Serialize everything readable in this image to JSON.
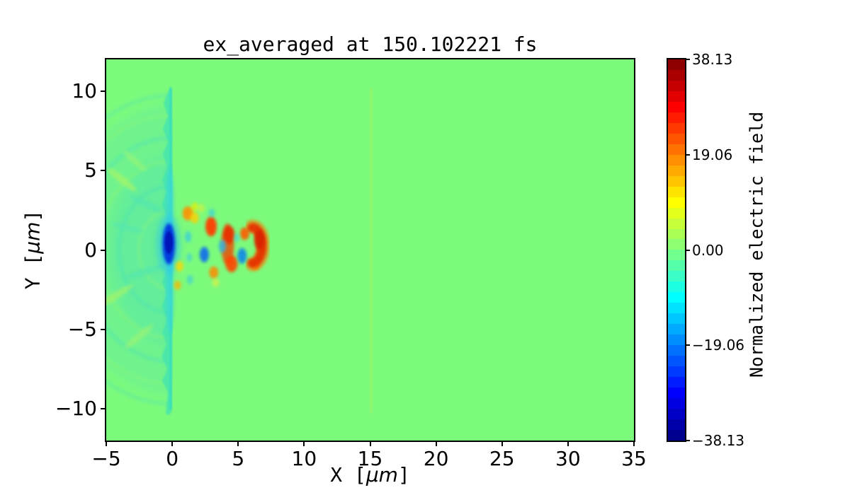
{
  "chart_data": {
    "type": "heatmap",
    "title": "ex_averaged at 150.102221 fs",
    "xlabel": {
      "prefix": "X [",
      "unit": "μm",
      "suffix": "]"
    },
    "ylabel": {
      "prefix": "Y [",
      "unit": "μm",
      "suffix": "]"
    },
    "xlim": [
      -5,
      35
    ],
    "ylim": [
      -12,
      12
    ],
    "x_ticks": [
      {
        "value": -5,
        "label": "−5"
      },
      {
        "value": 0,
        "label": "0"
      },
      {
        "value": 5,
        "label": "5"
      },
      {
        "value": 10,
        "label": "10"
      },
      {
        "value": 15,
        "label": "15"
      },
      {
        "value": 20,
        "label": "20"
      },
      {
        "value": 25,
        "label": "25"
      },
      {
        "value": 30,
        "label": "30"
      },
      {
        "value": 35,
        "label": "35"
      }
    ],
    "y_ticks": [
      {
        "value": 10,
        "label": "10"
      },
      {
        "value": 5,
        "label": "5"
      },
      {
        "value": 0,
        "label": "0"
      },
      {
        "value": -5,
        "label": "−5"
      },
      {
        "value": -10,
        "label": "−10"
      }
    ],
    "colormap": "jet",
    "clim": [
      -38.13,
      38.13
    ],
    "grid": false,
    "colorbar": {
      "label": "Normalized electric field",
      "position": "right",
      "bands": 36,
      "ticks": [
        {
          "value": 38.13,
          "label": "38.13"
        },
        {
          "value": 19.06,
          "label": "19.06"
        },
        {
          "value": 0.0,
          "label": "0.00"
        },
        {
          "value": -19.06,
          "label": "−19.06"
        },
        {
          "value": -38.13,
          "label": "−38.13"
        }
      ]
    },
    "features": [
      {
        "name": "uniform-background",
        "value": 0.0,
        "extent": "everywhere outside plasma and pulse"
      },
      {
        "name": "plasma-region",
        "x_range": [
          -5,
          0
        ],
        "y_range": [
          -10.6,
          10.3
        ],
        "value_range": [
          -4,
          2
        ],
        "description": "slightly negative (teal) region with jagged right edge at x≈0 and faint circular ripples centered near the origin"
      },
      {
        "name": "laser-pulse",
        "x_range": [
          -0.5,
          7.5
        ],
        "y_range": [
          -3.5,
          3.5
        ],
        "peak_positive": {
          "x": 6.4,
          "y": 0.3,
          "value": 38
        },
        "peak_negative": {
          "x": -0.3,
          "y": 0.3,
          "value": -38
        },
        "description": "cone of alternating positive (red/orange) and negative (blue/cyan) lobes converging toward x≈7, widest at x≈0"
      },
      {
        "name": "faint-front-line",
        "x": 15.1,
        "y_range": [
          -10.4,
          10.2
        ],
        "value": 3,
        "description": "thin faint yellow-green vertical line"
      }
    ]
  },
  "colors": {
    "figure_background": "#ffffff",
    "field_zero_green": "#7cfa7c",
    "plasma_teal": "#46e5ad",
    "front_line_green": "#93f56a",
    "positive_peak_red": "#e03000",
    "negative_peak_blue": "#0018b8",
    "axis_color": "#000000"
  }
}
